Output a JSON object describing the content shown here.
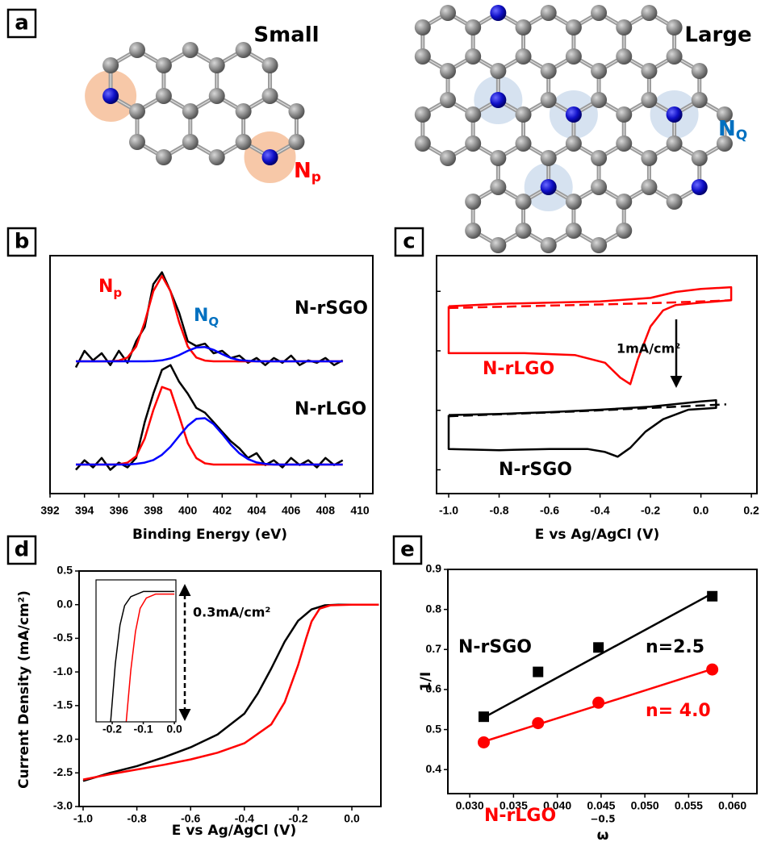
{
  "panel_labels": [
    "a",
    "b",
    "c",
    "d",
    "e"
  ],
  "diagram": {
    "small_title": "Small",
    "large_title": "Large",
    "np_label": {
      "text": "N",
      "sub": "p"
    },
    "nq_label": {
      "text": "N",
      "sub": "Q"
    }
  },
  "chart_data": [
    {
      "type": "line",
      "x_label": "Binding Energy (eV)",
      "xlim": [
        392,
        410.75
      ],
      "xticks": [
        392,
        394,
        396,
        398,
        400,
        402,
        404,
        406,
        408,
        410
      ],
      "ylim": [
        0,
        1
      ],
      "x": [
        393.5,
        394,
        394.5,
        395,
        395.5,
        396,
        396.5,
        397,
        397.5,
        398,
        398.5,
        399,
        399.5,
        400,
        400.5,
        401,
        401.5,
        402,
        402.5,
        403,
        403.5,
        404,
        404.5,
        405,
        405.5,
        406,
        406.5,
        407,
        407.5,
        408,
        408.5,
        409
      ],
      "series": [
        {
          "name": "N-rSGO",
          "color": "#000000",
          "values": [
            0.53,
            0.6,
            0.56,
            0.59,
            0.54,
            0.6,
            0.55,
            0.64,
            0.7,
            0.88,
            0.93,
            0.85,
            0.76,
            0.64,
            0.62,
            0.63,
            0.59,
            0.6,
            0.57,
            0.58,
            0.55,
            0.57,
            0.54,
            0.57,
            0.55,
            0.58,
            0.54,
            0.56,
            0.55,
            0.57,
            0.54,
            0.56
          ]
        },
        {
          "color": "#ff0000",
          "values": [
            0.556,
            0.556,
            0.556,
            0.556,
            0.556,
            0.559,
            0.572,
            0.618,
            0.72,
            0.851,
            0.915,
            0.851,
            0.72,
            0.618,
            0.572,
            0.559,
            0.556,
            0.556,
            0.556,
            0.556,
            0.556,
            0.556,
            0.556,
            0.556,
            0.556,
            0.556,
            0.556,
            0.556,
            0.556,
            0.556,
            0.556,
            0.556
          ]
        },
        {
          "color": "#0000ff",
          "values": [
            0.556,
            0.556,
            0.556,
            0.556,
            0.556,
            0.556,
            0.556,
            0.556,
            0.556,
            0.557,
            0.56,
            0.568,
            0.582,
            0.6,
            0.614,
            0.616,
            0.604,
            0.586,
            0.57,
            0.561,
            0.558,
            0.556,
            0.556,
            0.556,
            0.556,
            0.556,
            0.556,
            0.556,
            0.556,
            0.556,
            0.556,
            0.556
          ]
        },
        {
          "name": "N-rLGO",
          "color": "#000000",
          "values": [
            0.1,
            0.14,
            0.11,
            0.15,
            0.1,
            0.13,
            0.11,
            0.15,
            0.3,
            0.42,
            0.52,
            0.54,
            0.47,
            0.42,
            0.36,
            0.34,
            0.3,
            0.26,
            0.22,
            0.19,
            0.15,
            0.17,
            0.12,
            0.14,
            0.11,
            0.15,
            0.12,
            0.14,
            0.11,
            0.15,
            0.12,
            0.14
          ]
        },
        {
          "color": "#ff0000",
          "values": [
            0.122,
            0.122,
            0.122,
            0.122,
            0.122,
            0.123,
            0.13,
            0.157,
            0.231,
            0.351,
            0.448,
            0.435,
            0.326,
            0.212,
            0.149,
            0.127,
            0.122,
            0.122,
            0.122,
            0.122,
            0.122,
            0.122,
            0.122,
            0.122,
            0.122,
            0.122,
            0.122,
            0.122,
            0.122,
            0.122,
            0.122,
            0.122
          ]
        },
        {
          "color": "#0000ff",
          "values": [
            0.122,
            0.122,
            0.122,
            0.122,
            0.122,
            0.122,
            0.122,
            0.125,
            0.13,
            0.141,
            0.163,
            0.197,
            0.242,
            0.285,
            0.314,
            0.317,
            0.292,
            0.251,
            0.206,
            0.169,
            0.145,
            0.131,
            0.125,
            0.122,
            0.122,
            0.122,
            0.122,
            0.122,
            0.122,
            0.122,
            0.122,
            0.122
          ]
        }
      ],
      "annotations": [
        {
          "text": "N",
          "sub": "p",
          "color": "#ff0000"
        },
        {
          "text": "N",
          "sub": "Q",
          "color": "#0070c0"
        }
      ]
    },
    {
      "type": "line",
      "x_label": "E vs Ag/AgCl (V)",
      "xlim": [
        -1.048,
        0.222
      ],
      "xticks": [
        {
          "value": -1,
          "label": "-1.0"
        },
        -0.8,
        -0.6,
        -0.4,
        -0.2,
        {
          "value": 0,
          "label": "0.0"
        },
        0.2
      ],
      "ylim": [
        -4.4,
        -0.4
      ],
      "yticks": [
        -1,
        -2,
        -3,
        -4
      ],
      "ytick_labels": false,
      "scale_bar_label": "1mA/cm²",
      "series": [
        {
          "name": "N-rLGO",
          "color": "#ff0000",
          "x": [
            -1,
            -0.8,
            -0.6,
            -0.4,
            -0.2,
            -0.1,
            0,
            0.12,
            0.12,
            0,
            -0.1,
            -0.15,
            -0.2,
            -0.25,
            -0.28,
            -0.32,
            -0.38,
            -0.5,
            -0.7,
            -0.9,
            -1,
            -1
          ],
          "values": [
            -1.25,
            -1.21,
            -1.19,
            -1.17,
            -1.11,
            -1.01,
            -0.96,
            -0.93,
            -1.15,
            -1.19,
            -1.23,
            -1.32,
            -1.59,
            -2.14,
            -2.56,
            -2.45,
            -2.2,
            -2.07,
            -2.04,
            -2.04,
            -2.04,
            -1.25
          ]
        },
        {
          "color": "#ff0000",
          "dash": true,
          "x": [
            -1,
            -0.5,
            -0.2,
            0,
            0.12
          ],
          "values": [
            -1.28,
            -1.23,
            -1.2,
            -1.17,
            -1.15
          ]
        },
        {
          "name": "N-rSGO",
          "color": "#000000",
          "x": [
            -1,
            -0.8,
            -0.6,
            -0.4,
            -0.2,
            0,
            0.06,
            0.06,
            -0.05,
            -0.15,
            -0.22,
            -0.28,
            -0.33,
            -0.38,
            -0.45,
            -0.6,
            -0.8,
            -1,
            -1
          ],
          "values": [
            -3.08,
            -3.06,
            -3.03,
            -2.99,
            -2.94,
            -2.85,
            -2.83,
            -2.96,
            -2.99,
            -3.15,
            -3.36,
            -3.63,
            -3.78,
            -3.7,
            -3.65,
            -3.65,
            -3.67,
            -3.65,
            -3.08
          ]
        },
        {
          "color": "#000000",
          "dash": true,
          "x": [
            -1,
            -0.5,
            -0.2,
            0,
            0.1
          ],
          "values": [
            -3.1,
            -3.02,
            -2.96,
            -2.92,
            -2.9
          ]
        }
      ]
    },
    {
      "type": "line",
      "x_label": "E vs Ag/AgCl (V)",
      "y_label": "Current Density (mA/cm²)",
      "xlim": [
        -1.015,
        0.108
      ],
      "xticks": [
        {
          "value": -1,
          "label": "-1.0"
        },
        -0.8,
        -0.6,
        -0.4,
        -0.2,
        {
          "value": 0,
          "label": "0.0"
        }
      ],
      "ylim": [
        -3,
        0.5
      ],
      "yticks": [
        0.5,
        {
          "value": 0,
          "label": "0.0"
        },
        -0.5,
        {
          "value": -1,
          "label": "-1.0"
        },
        -1.5,
        {
          "value": -2,
          "label": "-2.0"
        },
        -2.5,
        {
          "value": -3,
          "label": "-3.0"
        }
      ],
      "scale_bar_label": "0.3mA/cm²",
      "series": [
        {
          "color": "#000000",
          "x": [
            -1,
            -0.9,
            -0.8,
            -0.7,
            -0.6,
            -0.5,
            -0.4,
            -0.35,
            -0.3,
            -0.25,
            -0.2,
            -0.15,
            -0.1,
            -0.05,
            0,
            0.1
          ],
          "values": [
            -2.62,
            -2.5,
            -2.4,
            -2.27,
            -2.12,
            -1.93,
            -1.62,
            -1.32,
            -0.95,
            -0.55,
            -0.24,
            -0.07,
            -0.01,
            0,
            0,
            0
          ]
        },
        {
          "color": "#ff0000",
          "x": [
            -1,
            -0.9,
            -0.8,
            -0.7,
            -0.6,
            -0.5,
            -0.4,
            -0.3,
            -0.25,
            -0.2,
            -0.17,
            -0.15,
            -0.12,
            -0.08,
            0,
            0.1
          ],
          "values": [
            -2.6,
            -2.52,
            -2.45,
            -2.38,
            -2.3,
            -2.2,
            -2.06,
            -1.78,
            -1.45,
            -0.9,
            -0.5,
            -0.25,
            -0.06,
            -0.01,
            0,
            0
          ]
        }
      ],
      "inset": {
        "type": "line",
        "xlim": [
          -0.252,
          0.005
        ],
        "xticks": [
          -0.2,
          -0.1,
          {
            "value": 0,
            "label": "0.0"
          }
        ],
        "ylim": [
          0,
          1.1
        ],
        "series": [
          {
            "color": "#000000",
            "x": [
              -0.205,
              -0.19,
              -0.175,
              -0.16,
              -0.14,
              -0.1,
              0
            ],
            "values": [
              0,
              0.45,
              0.75,
              0.9,
              0.97,
              1.01,
              1.01
            ]
          },
          {
            "color": "#ff0000",
            "x": [
              -0.155,
              -0.14,
              -0.125,
              -0.11,
              -0.09,
              -0.06,
              0
            ],
            "values": [
              0,
              0.4,
              0.7,
              0.88,
              0.96,
              0.99,
              0.99
            ]
          }
        ]
      }
    },
    {
      "type": "scatter",
      "x_label": "ω",
      "x_label_exponent": "−0.5",
      "y_label": "1/I",
      "xlim": [
        0.0275,
        0.0628
      ],
      "xticks": [
        {
          "value": 0.03,
          "label": "0.030"
        },
        {
          "value": 0.035,
          "label": "0.035"
        },
        {
          "value": 0.04,
          "label": "0.040"
        },
        {
          "value": 0.045,
          "label": "0.045"
        },
        {
          "value": 0.05,
          "label": "0.050"
        },
        {
          "value": 0.055,
          "label": "0.055"
        },
        {
          "value": 0.06,
          "label": "0.060"
        }
      ],
      "ylim": [
        0.34,
        0.9
      ],
      "yticks": [
        0.4,
        0.5,
        0.6,
        0.7,
        0.8,
        0.9
      ],
      "series": [
        {
          "name": "N-rSGO",
          "color": "#000000",
          "marker": "square",
          "x": [
            0.0316,
            0.0378,
            0.0447,
            0.0577
          ],
          "values": [
            0.532,
            0.644,
            0.705,
            0.833
          ]
        },
        {
          "name": "N-rLGO",
          "color": "#ff0000",
          "marker": "circle",
          "x": [
            0.0316,
            0.0378,
            0.0447,
            0.0577
          ],
          "values": [
            0.468,
            0.516,
            0.567,
            0.65
          ]
        },
        {
          "label": "n=2.5",
          "color": "#000000",
          "line": true,
          "x": [
            0.0316,
            0.0577
          ],
          "values": [
            0.53,
            0.84
          ]
        },
        {
          "label": "n= 4.0",
          "color": "#ff0000",
          "line": true,
          "x": [
            0.0316,
            0.0577
          ],
          "values": [
            0.47,
            0.651
          ]
        }
      ]
    }
  ]
}
